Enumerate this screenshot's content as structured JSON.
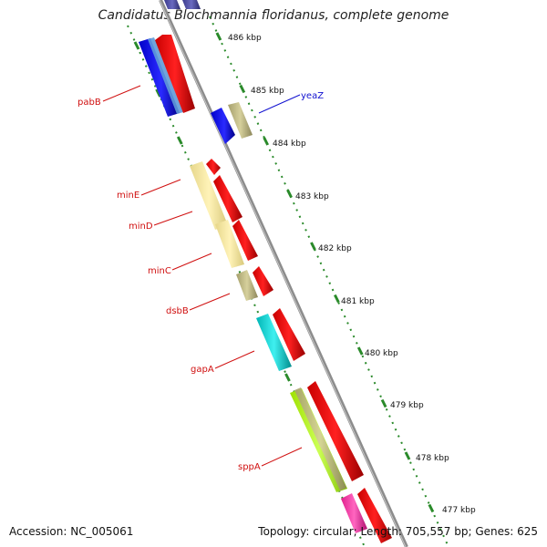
{
  "title": "Candidatus Blochmannia floridanus, complete genome",
  "footer": {
    "accession": "Accession: NC_005061",
    "summary": "Topology: circular; Length: 705,557 bp; Genes: 625"
  },
  "colors": {
    "backbone": "#8c8c8c",
    "tick": "#2a8a2a",
    "label_red": "#d01010",
    "label_blue": "#1010d0"
  },
  "scale_labels": [
    "486 kbp",
    "485 kbp",
    "484 kbp",
    "483 kbp",
    "482 kbp",
    "481 kbp",
    "480 kbp",
    "479 kbp",
    "478 kbp",
    "477 kbp"
  ],
  "gene_labels": [
    {
      "name": "pabB",
      "color": "red"
    },
    {
      "name": "yeaZ",
      "color": "blue"
    },
    {
      "name": "minE",
      "color": "red"
    },
    {
      "name": "minD",
      "color": "red"
    },
    {
      "name": "minC",
      "color": "red"
    },
    {
      "name": "dsbB",
      "color": "red"
    },
    {
      "name": "gapA",
      "color": "red"
    },
    {
      "name": "sppA",
      "color": "red"
    }
  ]
}
